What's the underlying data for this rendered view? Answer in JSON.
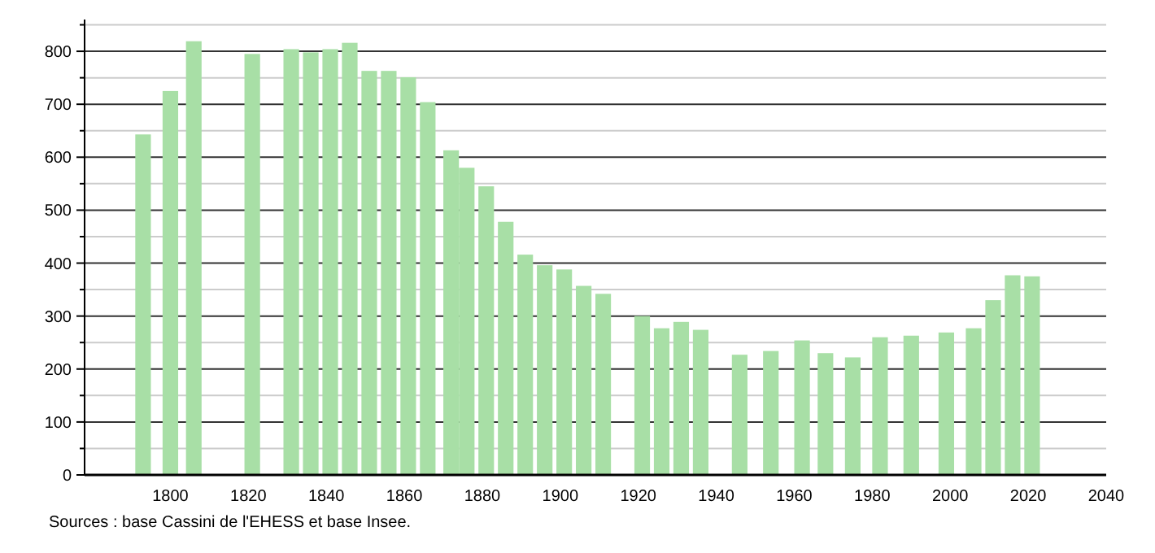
{
  "chart_data": {
    "type": "bar",
    "x": [
      1793,
      1800,
      1806,
      1821,
      1831,
      1836,
      1841,
      1846,
      1851,
      1856,
      1861,
      1866,
      1872,
      1876,
      1881,
      1886,
      1891,
      1896,
      1901,
      1906,
      1911,
      1921,
      1926,
      1931,
      1936,
      1946,
      1954,
      1962,
      1968,
      1975,
      1982,
      1990,
      1999,
      2006,
      2011,
      2016,
      2021
    ],
    "values": [
      643,
      725,
      819,
      795,
      804,
      798,
      804,
      816,
      763,
      763,
      751,
      704,
      613,
      580,
      545,
      478,
      416,
      396,
      388,
      357,
      342,
      300,
      277,
      289,
      274,
      227,
      234,
      254,
      230,
      222,
      260,
      263,
      269,
      277,
      330,
      377,
      375
    ],
    "color": "#a8dfa6",
    "xlim": [
      1778,
      2040
    ],
    "xticks": [
      1800,
      1820,
      1840,
      1860,
      1880,
      1900,
      1920,
      1940,
      1960,
      1980,
      2000,
      2020,
      2040
    ],
    "ylim": [
      0,
      860
    ],
    "yticks": [
      0,
      {
        "value": 50,
        "label": null
      },
      100,
      {
        "value": 150,
        "label": null
      },
      200,
      {
        "value": 250,
        "label": null
      },
      300,
      {
        "value": 350,
        "label": null
      },
      400,
      {
        "value": 450,
        "label": null
      },
      500,
      {
        "value": 550,
        "label": null
      },
      600,
      {
        "value": 650,
        "label": null
      },
      700,
      {
        "value": 750,
        "label": null
      },
      800,
      {
        "value": 850,
        "label": null
      }
    ],
    "grid": true,
    "annotations": [
      "Sources : base Cassini de l'EHESS et base Insee."
    ]
  }
}
